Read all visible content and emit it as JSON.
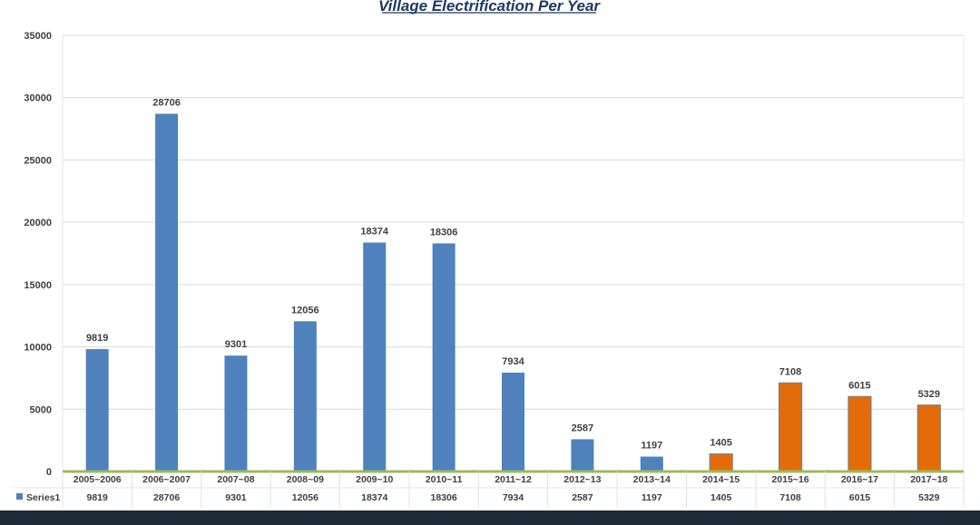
{
  "colors": {
    "series_blue": "#4f81bd",
    "highlight_orange": "#e36c09",
    "title": "#1f3864",
    "baseline_green": "#9bbb59",
    "bottom_bar": "#1e2a3a"
  },
  "chart_data": {
    "type": "bar",
    "title": "Village Electrification Per Year",
    "xlabel": "",
    "ylabel": "",
    "ylim": [
      0,
      35000
    ],
    "yticks": [
      0,
      5000,
      10000,
      15000,
      20000,
      25000,
      30000,
      35000
    ],
    "grid": true,
    "legend": "data table below chart",
    "categories": [
      "2005~2006",
      "2006~2007",
      "2007~08",
      "2008~09",
      "2009~10",
      "2010~11",
      "2011~12",
      "2012~13",
      "2013~14",
      "2014~15",
      "2015~16",
      "2016~17",
      "2017~18"
    ],
    "series": [
      {
        "name": "Series1",
        "values": [
          9819,
          28706,
          9301,
          12056,
          18374,
          18306,
          7934,
          2587,
          1197,
          1405,
          7108,
          6015,
          5329
        ],
        "bar_colors": [
          "#4f81bd",
          "#4f81bd",
          "#4f81bd",
          "#4f81bd",
          "#4f81bd",
          "#4f81bd",
          "#4f81bd",
          "#4f81bd",
          "#4f81bd",
          "#e36c09",
          "#e36c09",
          "#e36c09",
          "#e36c09"
        ]
      }
    ]
  }
}
